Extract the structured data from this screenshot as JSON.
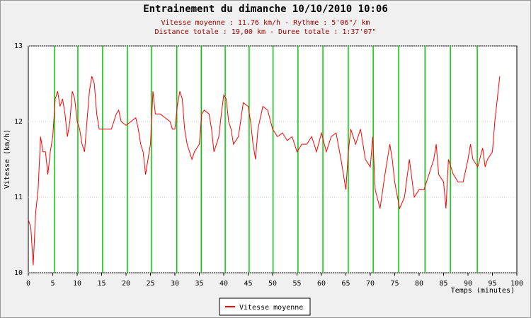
{
  "chart_data": {
    "type": "line",
    "title": "Entrainement du dimanche 10/10/2010 10:06",
    "subtitle": [
      "Vitesse moyenne : 11.76 km/h - Rythme : 5'06\"/ km",
      "Distance totale : 19,00 km - Duree totale : 1:37'07\""
    ],
    "x_label": "Temps (minutes)",
    "y_label": "Vitesse (km/h)",
    "x": [
      0,
      0.5,
      1,
      1.5,
      2,
      2.5,
      3,
      3.5,
      4,
      4.5,
      5,
      5.5,
      6,
      6.5,
      7,
      7.5,
      8,
      8.5,
      9,
      9.5,
      10,
      10.5,
      11,
      11.5,
      12,
      12.5,
      13,
      13.5,
      14,
      14.5,
      15,
      16,
      17,
      18,
      18.5,
      19,
      20,
      21,
      22,
      22.5,
      23,
      23.5,
      24,
      24.5,
      25,
      25.5,
      26,
      27,
      28,
      29,
      29.5,
      30,
      30.5,
      31,
      31.5,
      32,
      32.5,
      33,
      33.5,
      34,
      35,
      35.5,
      36,
      37,
      37.5,
      38,
      39,
      39.5,
      40,
      40.5,
      41,
      41.5,
      42,
      43,
      44,
      45,
      45.5,
      46,
      46.5,
      47,
      48,
      49,
      50,
      51,
      52,
      53,
      54,
      55,
      56,
      57,
      58,
      59,
      60,
      61,
      62,
      63,
      64,
      65,
      65.5,
      66,
      67,
      68,
      69,
      70,
      70.5,
      71,
      72,
      73,
      74,
      74.5,
      75,
      76,
      77,
      78,
      79,
      80,
      81,
      82,
      83,
      83.5,
      84,
      85,
      85.5,
      86,
      87,
      88,
      89,
      90,
      90.5,
      91,
      92,
      93,
      93.5,
      94,
      95,
      95.5,
      96,
      96.5
    ],
    "series": [
      {
        "name": "Vitesse moyenne",
        "color": "#ff0000",
        "values": [
          10.7,
          10.6,
          10.1,
          10.8,
          11.1,
          11.8,
          11.6,
          11.6,
          11.3,
          11.6,
          11.8,
          12.3,
          12.4,
          12.2,
          12.3,
          12.1,
          11.8,
          12.0,
          12.4,
          12.3,
          12.0,
          11.9,
          11.7,
          11.6,
          12.0,
          12.4,
          12.6,
          12.5,
          12.1,
          11.9,
          11.9,
          11.9,
          11.9,
          12.1,
          12.15,
          12.0,
          11.95,
          12.0,
          12.05,
          11.9,
          11.7,
          11.6,
          11.3,
          11.5,
          11.7,
          12.4,
          12.1,
          12.1,
          12.05,
          12.0,
          11.9,
          11.9,
          12.2,
          12.4,
          12.3,
          11.9,
          11.7,
          11.6,
          11.5,
          11.6,
          11.7,
          12.1,
          12.15,
          12.1,
          11.9,
          11.6,
          11.8,
          12.1,
          12.35,
          12.3,
          12.0,
          11.9,
          11.7,
          11.8,
          12.25,
          12.2,
          12.0,
          11.7,
          11.5,
          11.9,
          12.2,
          12.15,
          11.9,
          11.8,
          11.85,
          11.75,
          11.8,
          11.6,
          11.7,
          11.7,
          11.8,
          11.6,
          11.85,
          11.6,
          11.8,
          11.85,
          11.5,
          11.1,
          11.6,
          11.9,
          11.7,
          11.9,
          11.5,
          11.4,
          11.8,
          11.1,
          10.85,
          11.3,
          11.7,
          11.5,
          11.2,
          10.85,
          11.0,
          11.5,
          11.0,
          11.1,
          11.1,
          11.3,
          11.5,
          11.7,
          11.3,
          11.2,
          10.85,
          11.5,
          11.3,
          11.2,
          11.2,
          11.5,
          11.7,
          11.5,
          11.4,
          11.65,
          11.4,
          11.5,
          11.6,
          12.0,
          12.3,
          12.6
        ]
      }
    ],
    "km_markers": {
      "color": "#00cc00",
      "x": [
        5.36,
        10.14,
        15.2,
        20.3,
        25.2,
        30.4,
        35.4,
        40.3,
        45.2,
        50.1,
        55.2,
        60.3,
        65.5,
        70.6,
        75.8,
        81.2,
        86.4,
        91.9
      ]
    },
    "xlim": [
      0,
      100
    ],
    "xticks": [
      0,
      5,
      10,
      15,
      20,
      25,
      30,
      35,
      40,
      45,
      50,
      55,
      60,
      65,
      70,
      75,
      80,
      85,
      90,
      95,
      100
    ],
    "ylim": [
      10,
      13
    ],
    "yticks": [
      10,
      11,
      12,
      13
    ],
    "grid": true,
    "legend": "bottom"
  }
}
